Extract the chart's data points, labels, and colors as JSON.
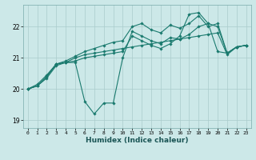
{
  "title": "",
  "xlabel": "Humidex (Indice chaleur)",
  "ylabel": "",
  "bg_color": "#cce8e8",
  "grid_color": "#aacccc",
  "line_color": "#1a7a6e",
  "xlim": [
    -0.5,
    23.5
  ],
  "ylim": [
    18.75,
    22.7
  ],
  "yticks": [
    19,
    20,
    21,
    22
  ],
  "xticks": [
    0,
    1,
    2,
    3,
    4,
    5,
    6,
    7,
    8,
    9,
    10,
    11,
    12,
    13,
    14,
    15,
    16,
    17,
    18,
    19,
    20,
    21,
    22,
    23
  ],
  "series": [
    [
      20.0,
      20.1,
      20.4,
      20.8,
      20.85,
      20.85,
      19.6,
      19.2,
      19.55,
      19.55,
      21.0,
      21.85,
      21.7,
      21.55,
      21.45,
      21.65,
      21.6,
      21.75,
      22.0,
      22.1,
      21.2,
      21.15,
      21.35,
      21.4
    ],
    [
      20.0,
      20.1,
      20.4,
      20.8,
      20.85,
      21.0,
      21.1,
      21.15,
      21.2,
      21.25,
      21.3,
      21.35,
      21.4,
      21.45,
      21.5,
      21.55,
      21.6,
      21.65,
      21.7,
      21.75,
      21.8,
      21.1,
      21.35,
      21.4
    ],
    [
      20.0,
      20.15,
      20.45,
      20.8,
      20.9,
      21.05,
      21.2,
      21.3,
      21.4,
      21.5,
      21.55,
      22.0,
      22.1,
      21.9,
      21.8,
      22.05,
      21.95,
      22.1,
      22.35,
      22.0,
      22.1,
      21.15,
      21.35,
      21.4
    ],
    [
      20.0,
      20.1,
      20.35,
      20.75,
      20.85,
      20.9,
      21.0,
      21.05,
      21.1,
      21.15,
      21.2,
      21.7,
      21.55,
      21.4,
      21.3,
      21.45,
      21.7,
      22.4,
      22.45,
      22.1,
      22.0,
      21.15,
      21.35,
      21.4
    ]
  ]
}
